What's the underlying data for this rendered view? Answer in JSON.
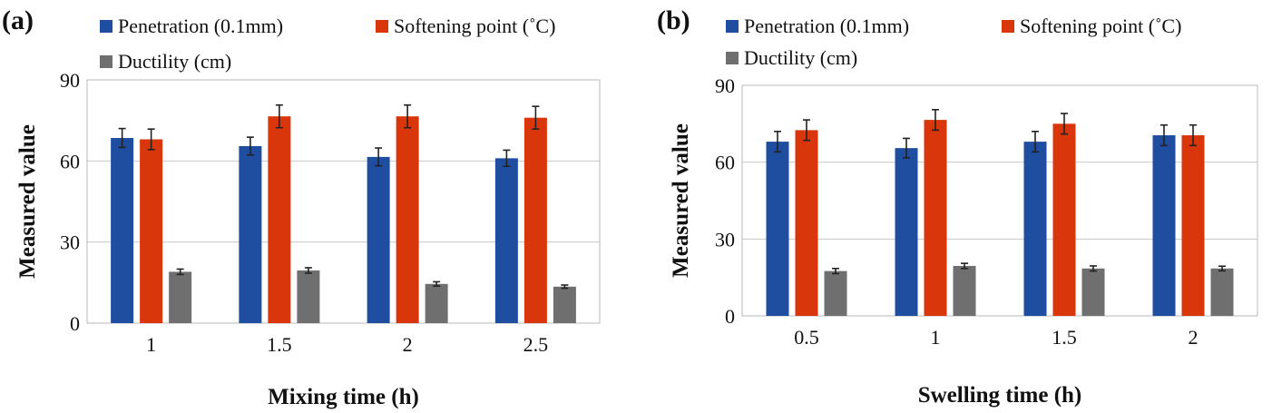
{
  "chart_data": [
    {
      "type": "bar",
      "panel_label": "(a)",
      "categories": [
        "1",
        "1.5",
        "2",
        "2.5"
      ],
      "series": [
        {
          "name": "Penetration (0.1mm)",
          "color": "#1f4ea1",
          "values": [
            68.5,
            65.5,
            61.5,
            61
          ],
          "errors": [
            3.5,
            3.3,
            3.3,
            3.0
          ]
        },
        {
          "name": "Softening point (˚C)",
          "color": "#d9360b",
          "values": [
            68,
            76.5,
            76.5,
            76
          ],
          "errors": [
            3.8,
            4.2,
            4.2,
            4.2
          ]
        },
        {
          "name": "Ductility (cm)",
          "color": "#6f6f6f",
          "values": [
            19,
            19.5,
            14.5,
            13.5
          ],
          "errors": [
            1.0,
            1.0,
            0.8,
            0.6
          ]
        }
      ],
      "title": "",
      "xlabel": "Mixing time (h)",
      "ylabel": "Measured value",
      "ylim": [
        0,
        90
      ],
      "yticks": [
        "0",
        "30",
        "60",
        "90"
      ],
      "grid": true,
      "legend": "top"
    },
    {
      "type": "bar",
      "panel_label": "(b)",
      "categories": [
        "0.5",
        "1",
        "1.5",
        "2"
      ],
      "series": [
        {
          "name": "Penetration (0.1mm)",
          "color": "#1f4ea1",
          "values": [
            68,
            65.5,
            68,
            70.5
          ],
          "errors": [
            4.0,
            3.8,
            4.0,
            4.0
          ]
        },
        {
          "name": "Softening point (˚C)",
          "color": "#d9360b",
          "values": [
            72.5,
            76.5,
            75,
            70.5
          ],
          "errors": [
            4.0,
            4.0,
            4.0,
            4.0
          ]
        },
        {
          "name": "Ductility (cm)",
          "color": "#6f6f6f",
          "values": [
            17.5,
            19.5,
            18.5,
            18.5
          ],
          "errors": [
            1.0,
            1.0,
            1.0,
            0.9
          ]
        }
      ],
      "title": "",
      "xlabel": "Swelling time (h)",
      "ylabel": "Measured value",
      "ylim": [
        0,
        90
      ],
      "yticks": [
        "0",
        "30",
        "60",
        "90"
      ],
      "grid": true,
      "legend": "top"
    }
  ]
}
